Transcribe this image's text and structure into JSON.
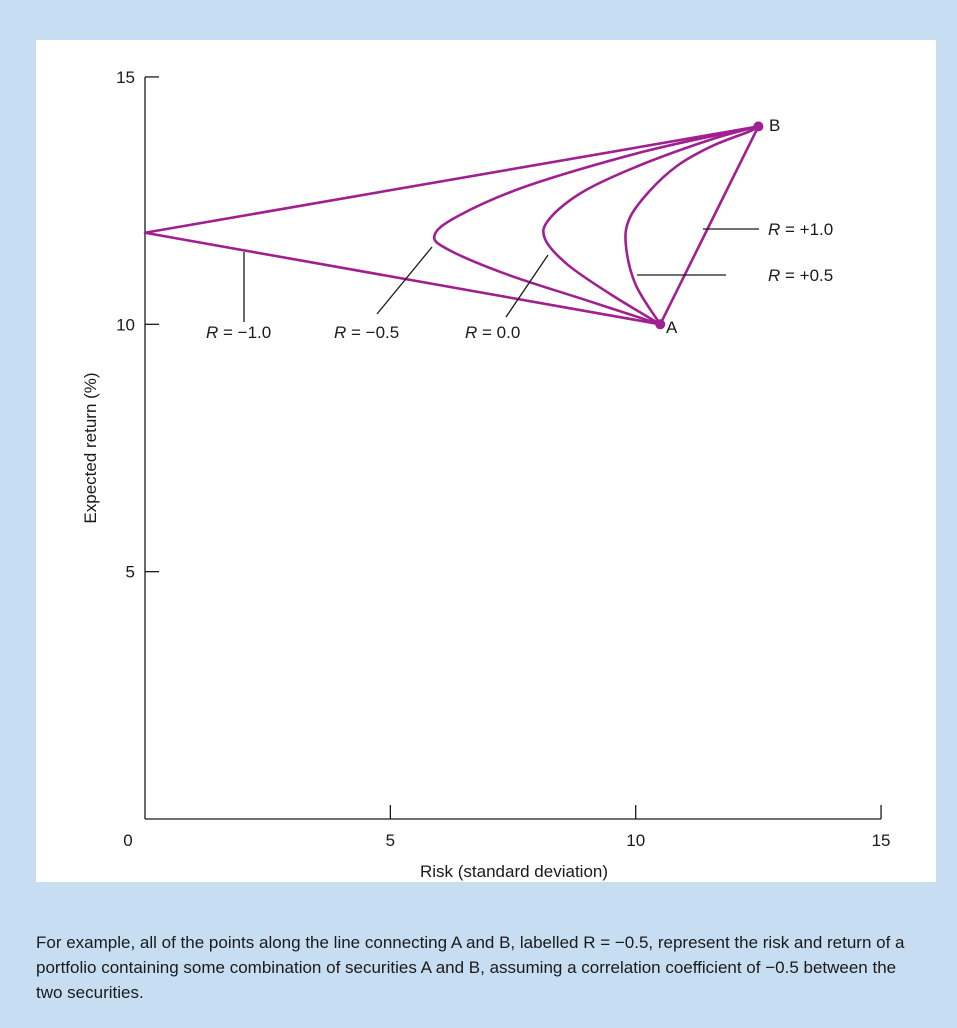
{
  "colors": {
    "background": "#c7def2",
    "panel": "#ffffff",
    "curve": "#a0208f",
    "axis": "#1a1a1a"
  },
  "chart_data": {
    "type": "line",
    "xlabel": "Risk (standard deviation)",
    "ylabel": "Expected return (%)",
    "xlim": [
      0,
      15
    ],
    "ylim": [
      0,
      15
    ],
    "x_ticks": [
      "0",
      "5",
      "10",
      "15"
    ],
    "y_ticks": [
      "5",
      "10",
      "15"
    ],
    "grid": false,
    "points": [
      {
        "name": "A",
        "x": 10.5,
        "y": 10.0
      },
      {
        "name": "B",
        "x": 12.5,
        "y": 14.0
      }
    ],
    "series": [
      {
        "name": "R = +1.0",
        "x": [
          10.5,
          11.0,
          11.5,
          12.0,
          12.5
        ],
        "y": [
          10.0,
          11.0,
          12.0,
          13.0,
          14.0
        ]
      },
      {
        "name": "R = +0.5",
        "x": [
          10.5,
          10.0,
          9.8,
          9.87,
          10.26,
          10.84,
          11.55,
          12.32,
          12.5
        ],
        "y": [
          10.0,
          10.8,
          11.6,
          12.13,
          12.67,
          13.2,
          13.6,
          13.9,
          14.0
        ]
      },
      {
        "name": "R = 0.0",
        "x": [
          10.5,
          9.5,
          8.62,
          8.15,
          8.24,
          8.91,
          10.05,
          11.52,
          12.5
        ],
        "y": [
          10.0,
          10.6,
          11.2,
          11.73,
          12.13,
          12.67,
          13.2,
          13.73,
          14.0
        ]
      },
      {
        "name": "R = −0.5",
        "x": [
          10.5,
          8.95,
          7.4,
          6.2,
          5.9,
          6.4,
          7.8,
          10.2,
          12.5
        ],
        "y": [
          10.0,
          10.5,
          11.0,
          11.5,
          11.8,
          12.2,
          12.8,
          13.5,
          14.0
        ]
      },
      {
        "name": "R = −1.0",
        "x": [
          10.5,
          0.0,
          12.5
        ],
        "y": [
          10.0,
          11.85,
          14.0
        ]
      }
    ],
    "label_text": {
      "B": "B",
      "A": "A",
      "r_plus1": {
        "prefix": "R",
        "rest": " = +1.0"
      },
      "r_plus05": {
        "prefix": "R",
        "rest": " = +0.5"
      },
      "r_zero": {
        "prefix": "R",
        "rest": " = 0.0"
      },
      "r_minus05": {
        "prefix": "R",
        "rest": " = −0.5"
      },
      "r_minus1": {
        "prefix": "R",
        "rest": " = −1.0"
      }
    }
  },
  "caption": "For example, all of the points along the line connecting A and B, labelled R = −0.5, represent the risk and return of a portfolio containing some combination of securities A and B, assuming a correlation coefficient of −0.5 between the two securities."
}
